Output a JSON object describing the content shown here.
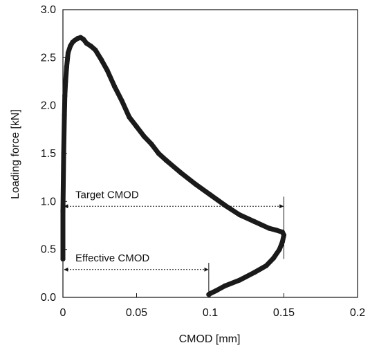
{
  "chart_data": {
    "type": "line",
    "title": "",
    "xlabel": "CMOD [mm]",
    "ylabel": "Loading force [kN]",
    "xlim": [
      0,
      0.2
    ],
    "ylim": [
      0,
      3.0
    ],
    "x_ticks": [
      0,
      0.05,
      0.1,
      0.15,
      0.2
    ],
    "x_tick_labels": [
      "0",
      "0.05",
      "0.1",
      "0.15",
      "0.2"
    ],
    "y_ticks": [
      0,
      0.5,
      1.0,
      1.5,
      2.0,
      2.5,
      3.0
    ],
    "y_tick_labels": [
      "0.0",
      "0.5",
      "1.0",
      "1.5",
      "2.0",
      "2.5",
      "3.0"
    ],
    "grid": false,
    "legend": "none",
    "series": [
      {
        "color": "#1a1a1a",
        "x": [
          0.0,
          0.0,
          0.0005,
          0.001,
          0.0013,
          0.0018,
          0.0025,
          0.0035,
          0.005,
          0.0065,
          0.008,
          0.01,
          0.012,
          0.014,
          0.016,
          0.019,
          0.022,
          0.026,
          0.03,
          0.035,
          0.04,
          0.045,
          0.05,
          0.055,
          0.06,
          0.065,
          0.07,
          0.08,
          0.09,
          0.1,
          0.11,
          0.12,
          0.13,
          0.14,
          0.145,
          0.149,
          0.15,
          0.149,
          0.147,
          0.143,
          0.138,
          0.13,
          0.12,
          0.11,
          0.104,
          0.1,
          0.099
        ],
        "y": [
          0.4,
          0.9,
          1.5,
          1.9,
          2.1,
          2.25,
          2.4,
          2.55,
          2.62,
          2.66,
          2.68,
          2.7,
          2.71,
          2.69,
          2.65,
          2.62,
          2.58,
          2.48,
          2.37,
          2.2,
          2.05,
          1.88,
          1.78,
          1.68,
          1.6,
          1.5,
          1.43,
          1.3,
          1.18,
          1.07,
          0.96,
          0.86,
          0.79,
          0.72,
          0.7,
          0.68,
          0.65,
          0.58,
          0.5,
          0.41,
          0.33,
          0.26,
          0.18,
          0.12,
          0.07,
          0.04,
          0.03
        ]
      }
    ],
    "annotations": [
      {
        "label": "Target CMOD",
        "x_start": 0.0,
        "x_end": 0.15,
        "y": 0.95
      },
      {
        "label": "Effective CMOD",
        "x_start": 0.0,
        "x_end": 0.099,
        "y": 0.29
      }
    ],
    "reference_lines": [
      {
        "x": 0.15,
        "y_from": 0.4,
        "y_to": 1.05
      },
      {
        "x": 0.099,
        "y_from": 0.0,
        "y_to": 0.36
      }
    ]
  }
}
